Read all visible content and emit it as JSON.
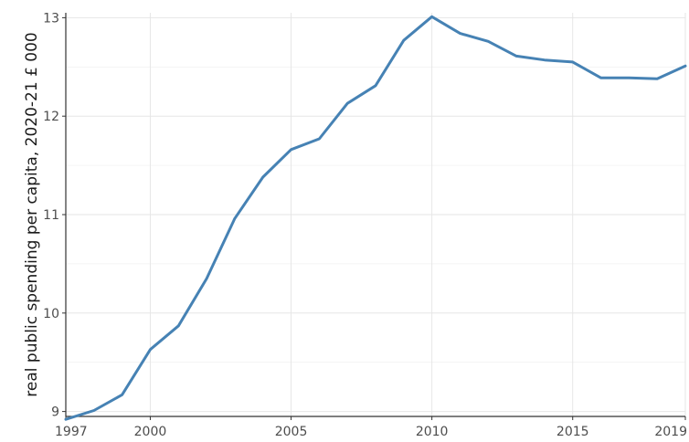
{
  "chart_data": {
    "type": "line",
    "title": "",
    "xlabel": "",
    "ylabel": "real public spending per capita, 2020-21 £ 000",
    "xlim": [
      1997,
      2019
    ],
    "ylim": [
      8.95,
      13.05
    ],
    "x_ticks": [
      1997,
      2000,
      2005,
      2010,
      2015,
      2019
    ],
    "x_tick_labels": [
      "1997",
      "2000",
      "2005",
      "2010",
      "2015",
      "2019"
    ],
    "y_ticks": [
      9,
      10,
      11,
      12,
      13
    ],
    "y_tick_labels": [
      "9",
      "10",
      "11",
      "12",
      "13"
    ],
    "grid": true,
    "legend": "none",
    "line_color": "#4682b4",
    "series": [
      {
        "x": [
          1997,
          1998,
          1999,
          2000,
          2001,
          2002,
          2003,
          2004,
          2005,
          2006,
          2007,
          2008,
          2009,
          2010,
          2011,
          2012,
          2013,
          2014,
          2015,
          2016,
          2017,
          2018,
          2019
        ],
        "values": [
          8.92,
          9.01,
          9.17,
          9.63,
          9.87,
          10.35,
          10.96,
          11.38,
          11.66,
          11.77,
          12.13,
          12.31,
          12.77,
          13.01,
          12.84,
          12.76,
          12.61,
          12.57,
          12.55,
          12.39,
          12.39,
          12.38,
          12.51
        ]
      }
    ]
  }
}
